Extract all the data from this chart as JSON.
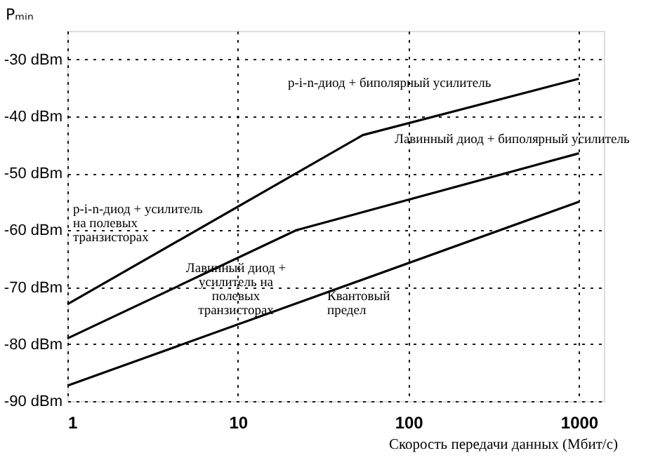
{
  "chart_data": {
    "type": "line",
    "xlabel": "Скорость передачи данных (Мбит/с)",
    "ylabel": "Pₘᵢₙ",
    "log": "x",
    "xlim": [
      1,
      1400
    ],
    "xticks": [
      1,
      10,
      100,
      1000
    ],
    "ylim": [
      -90,
      -25
    ],
    "yticks": [
      {
        "value": -90,
        "label": "-90 dBm"
      },
      {
        "value": -80,
        "label": "-80 dBm"
      },
      {
        "value": -70,
        "label": "-70 dBm"
      },
      {
        "value": -60,
        "label": "-60 dBm"
      },
      {
        "value": -50,
        "label": "-50 dBm"
      },
      {
        "value": -40,
        "label": "-40 dBm"
      },
      {
        "value": -30,
        "label": "-30 dBm"
      }
    ],
    "grid": true,
    "marker": "none",
    "line_style": "solid",
    "series": [
      {
        "color": "#000000",
        "x": [
          1,
          54,
          1000
        ],
        "values": [
          -73,
          -43.3,
          -33.4
        ]
      },
      {
        "color": "#000000",
        "x": [
          1,
          22,
          1000
        ],
        "values": [
          -79,
          -60,
          -46.5
        ]
      },
      {
        "color": "#000000",
        "x": [
          1,
          1000
        ],
        "values": [
          -87.3,
          -55
        ]
      }
    ],
    "annotations": [
      "p-i-n-диод + биполярный усилитель",
      "Лавинный диод + биполярный усилитель",
      "p-i-n-диод + усилитель\nна полевых\nтранзисторах",
      "Лавинный диод +\nусилитель на\nполевых\nтранзисторах",
      "Квантовый\nпредел"
    ]
  }
}
